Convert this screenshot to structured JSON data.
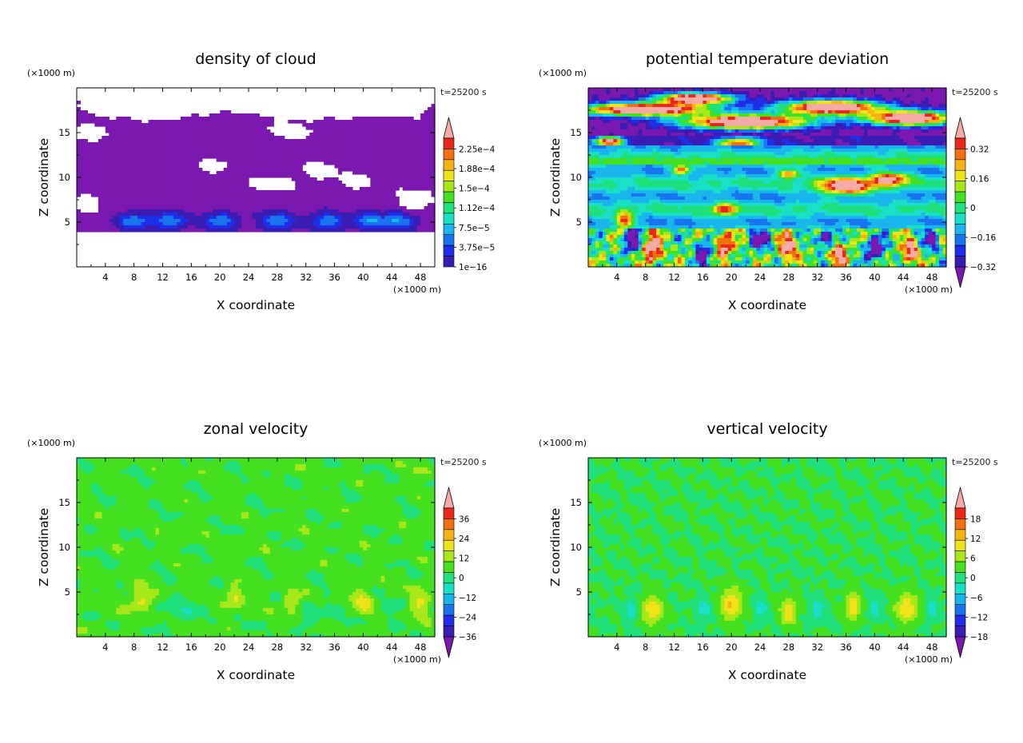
{
  "figure": {
    "background": "#ffffff"
  },
  "chart_data": [
    {
      "type": "heatmap",
      "title": "density of cloud",
      "xlabel": "X coordinate",
      "ylabel": "Z coordinate",
      "x_unit": "(×1000 m)",
      "y_unit": "(×1000 m)",
      "time_label": "t=25200 s",
      "xlim": [
        0,
        50
      ],
      "ylim": [
        0,
        20
      ],
      "x_ticks": [
        4,
        8,
        12,
        16,
        20,
        24,
        28,
        32,
        36,
        40,
        44,
        48
      ],
      "y_ticks": [
        5,
        10,
        15
      ],
      "colorbar": {
        "labels": [
          "2.25e−4",
          "1.88e−4",
          "1.5e−4",
          "1.12e−4",
          "7.5e−5",
          "3.75e−5",
          "1e−16"
        ],
        "label_values": [
          0.000225,
          0.0001875,
          0.00015,
          0.0001125,
          7.5e-05,
          3.75e-05,
          1e-16
        ],
        "colors": [
          "#7a18b0",
          "#3a1cb4",
          "#1f2ee8",
          "#1a74f0",
          "#18b6ec",
          "#1ae0c8",
          "#1fe07a",
          "#45e020",
          "#a8e81a",
          "#f0e418",
          "#f5b414",
          "#f37010",
          "#e8281a",
          "#f5aaa6"
        ],
        "extend": "max"
      },
      "field": "cloud"
    },
    {
      "type": "heatmap",
      "title": "potential temperature deviation",
      "xlabel": "X coordinate",
      "ylabel": "Z coordinate",
      "x_unit": "(×1000 m)",
      "y_unit": "(×1000 m)",
      "time_label": "t=25200 s",
      "xlim": [
        0,
        50
      ],
      "ylim": [
        0,
        20
      ],
      "x_ticks": [
        4,
        8,
        12,
        16,
        20,
        24,
        28,
        32,
        36,
        40,
        44,
        48
      ],
      "y_ticks": [
        5,
        10,
        15
      ],
      "colorbar": {
        "labels": [
          "0.32",
          "0.16",
          "0",
          "−0.16",
          "−0.32"
        ],
        "label_values": [
          0.32,
          0.16,
          0,
          -0.16,
          -0.32
        ],
        "colors": [
          "#7a18b0",
          "#3a1cb4",
          "#1f2ee8",
          "#1a74f0",
          "#18b6ec",
          "#1ae0c8",
          "#1fe07a",
          "#45e020",
          "#a8e81a",
          "#f0e418",
          "#f5b414",
          "#f37010",
          "#e8281a",
          "#f5aaa6"
        ],
        "extend": "both"
      },
      "field": "theta"
    },
    {
      "type": "heatmap",
      "title": "zonal velocity",
      "xlabel": "X coordinate",
      "ylabel": "Z coordinate",
      "x_unit": "(×1000 m)",
      "y_unit": "(×1000 m)",
      "time_label": "t=25200 s",
      "xlim": [
        0,
        50
      ],
      "ylim": [
        0,
        20
      ],
      "x_ticks": [
        4,
        8,
        12,
        16,
        20,
        24,
        28,
        32,
        36,
        40,
        44,
        48
      ],
      "y_ticks": [
        5,
        10,
        15
      ],
      "colorbar": {
        "labels": [
          "36",
          "24",
          "12",
          "0",
          "−12",
          "−24",
          "−36"
        ],
        "label_values": [
          36,
          24,
          12,
          0,
          -12,
          -24,
          -36
        ],
        "colors": [
          "#7a18b0",
          "#3a1cb4",
          "#1f2ee8",
          "#1a74f0",
          "#18b6ec",
          "#1ae0c8",
          "#1fe07a",
          "#45e020",
          "#a8e81a",
          "#f0e418",
          "#f5b414",
          "#f37010",
          "#e8281a",
          "#f5aaa6"
        ],
        "extend": "both"
      },
      "field": "u"
    },
    {
      "type": "heatmap",
      "title": "vertical velocity",
      "xlabel": "X coordinate",
      "ylabel": "Z coordinate",
      "x_unit": "(×1000 m)",
      "y_unit": "(×1000 m)",
      "time_label": "t=25200 s",
      "xlim": [
        0,
        50
      ],
      "ylim": [
        0,
        20
      ],
      "x_ticks": [
        4,
        8,
        12,
        16,
        20,
        24,
        28,
        32,
        36,
        40,
        44,
        48
      ],
      "y_ticks": [
        5,
        10,
        15
      ],
      "colorbar": {
        "labels": [
          "18",
          "12",
          "6",
          "0",
          "−6",
          "−12",
          "−18"
        ],
        "label_values": [
          18,
          12,
          6,
          0,
          -6,
          -12,
          -18
        ],
        "colors": [
          "#7a18b0",
          "#3a1cb4",
          "#1f2ee8",
          "#1a74f0",
          "#18b6ec",
          "#1ae0c8",
          "#1fe07a",
          "#45e020",
          "#a8e81a",
          "#f0e418",
          "#f5b414",
          "#f37010",
          "#e8281a",
          "#f5aaa6"
        ],
        "extend": "both"
      },
      "field": "w"
    }
  ]
}
